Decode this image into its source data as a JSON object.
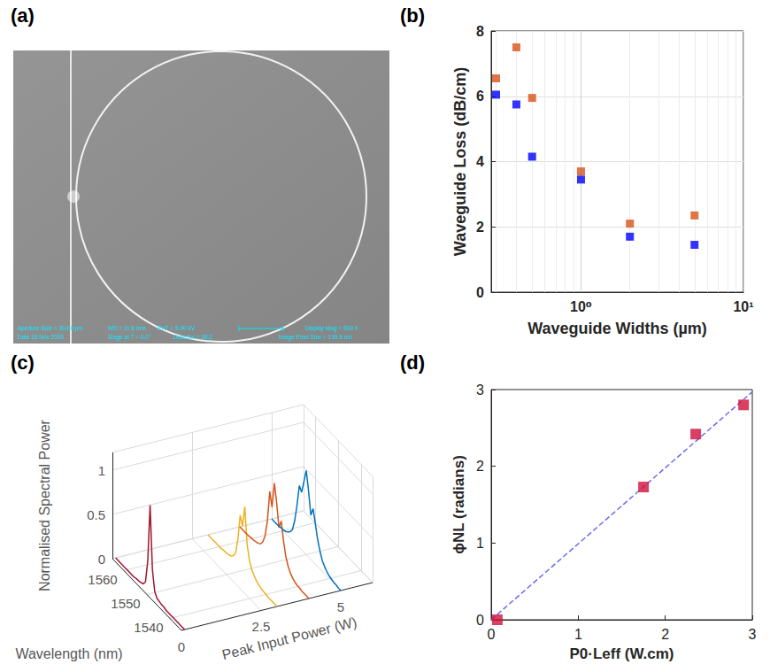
{
  "chart_data": [
    {
      "panel": "(a)",
      "type": "image",
      "annotations": [
        "Aperture Size = 30.00 µm",
        "WD = 11.6 mm",
        "EHT = 5.00 kV",
        "Display Mag = 500 X",
        "Date 18 Nov 2020",
        "Stage at T = 0.0°",
        "Detector = SE2",
        "Image Pixel Size = 139.9 nm"
      ]
    },
    {
      "panel": "(b)",
      "type": "scatter",
      "log": "x",
      "grid": true,
      "marker": "square",
      "xlabel": "Waveguide Widths (µm)",
      "ylabel": "Waveguide Loss (dB/cm)",
      "xlim": [
        0.28,
        10
      ],
      "xticks": [
        {
          "value": 1,
          "label": "10⁰"
        },
        {
          "value": 10,
          "label": "10¹"
        }
      ],
      "ylim": [
        0,
        8
      ],
      "yticks": [
        0,
        2,
        4,
        6,
        8
      ],
      "series": [
        {
          "color": "#d95319",
          "x": [
            0.3,
            0.4,
            0.5,
            1,
            2,
            5
          ],
          "values": [
            6.55,
            7.5,
            5.95,
            3.7,
            2.1,
            2.35
          ]
        },
        {
          "color": "#0000ff",
          "x": [
            0.3,
            0.4,
            0.5,
            1,
            2,
            5
          ],
          "values": [
            6.05,
            5.75,
            4.15,
            3.45,
            1.7,
            1.45
          ]
        }
      ]
    },
    {
      "panel": "(c)",
      "type": "waterfall",
      "grid": true,
      "xlabel": "Wavelength (nm)",
      "ylabel": "Peak Input Power (W)",
      "zlabel": "Normalised Spectral Power",
      "x": [
        1535,
        1536,
        1537,
        1538,
        1539,
        1540,
        1541,
        1542,
        1543,
        1544,
        1545,
        1546,
        1547,
        1548,
        1549,
        1550,
        1551,
        1552,
        1553,
        1554,
        1555,
        1556,
        1557,
        1558,
        1559,
        1560,
        1561,
        1562,
        1563,
        1564,
        1565
      ],
      "xlim": [
        1535,
        1565
      ],
      "xticks": [
        1540,
        1550,
        1560
      ],
      "ylim": [
        0,
        6
      ],
      "yticks": [
        0,
        2.5,
        5
      ],
      "zlim": [
        0,
        1.2
      ],
      "zticks": [
        0,
        0.5,
        1
      ],
      "series": [
        {
          "color": "#a2142f",
          "power": 0.1,
          "values": [
            0,
            0,
            0,
            0,
            0,
            0,
            0,
            0,
            0,
            0.01,
            0.01,
            0.02,
            0.03,
            0.08,
            0.3,
            1.0,
            0.35,
            0.08,
            0.03,
            0.02,
            0.01,
            0.01,
            0,
            0,
            0,
            0,
            0,
            0,
            0,
            0,
            0
          ]
        },
        {
          "color": "#edb120",
          "power": 3,
          "values": [
            0,
            0,
            0,
            0,
            0,
            0.01,
            0.01,
            0.02,
            0.03,
            0.05,
            0.08,
            0.12,
            0.2,
            0.35,
            0.75,
            0.5,
            0.6,
            0.3,
            0.12,
            0.06,
            0.03,
            0.02,
            0.01,
            0.01,
            0,
            0,
            0,
            0,
            0,
            0,
            0
          ]
        },
        {
          "color": "#d95319",
          "power": 4,
          "values": [
            0,
            0,
            0,
            0,
            0.01,
            0.01,
            0.02,
            0.04,
            0.07,
            0.12,
            0.2,
            0.35,
            0.55,
            0.45,
            0.7,
            0.9,
            0.6,
            0.75,
            0.4,
            0.2,
            0.1,
            0.05,
            0.03,
            0.02,
            0.01,
            0.01,
            0,
            0,
            0,
            0,
            0
          ]
        },
        {
          "color": "#0072bd",
          "power": 5,
          "values": [
            0,
            0,
            0.01,
            0.01,
            0.02,
            0.03,
            0.05,
            0.08,
            0.12,
            0.2,
            0.3,
            0.45,
            0.6,
            0.5,
            0.75,
            0.95,
            0.8,
            0.65,
            0.7,
            0.45,
            0.25,
            0.12,
            0.07,
            0.04,
            0.02,
            0.01,
            0.01,
            0,
            0,
            0,
            0
          ]
        }
      ]
    },
    {
      "panel": "(d)",
      "type": "scatter",
      "grid": false,
      "xlabel": "P0·Leff (W.cm)",
      "ylabel": "ϕNL (radians)",
      "xlim": [
        0,
        3
      ],
      "xticks": [
        0,
        1,
        2,
        3
      ],
      "ylim": [
        0,
        3
      ],
      "yticks": [
        0,
        1,
        2,
        3
      ],
      "series": [
        {
          "type": "line",
          "line_style": "dashed",
          "color": "#6b6bf0",
          "x": [
            0,
            3
          ],
          "values": [
            0,
            2.97
          ]
        },
        {
          "type": "scatter",
          "marker": "square",
          "color": "#d0103a",
          "x": [
            0.07,
            1.75,
            2.35,
            2.9
          ],
          "values": [
            0,
            1.73,
            2.42,
            2.8
          ]
        }
      ]
    }
  ]
}
